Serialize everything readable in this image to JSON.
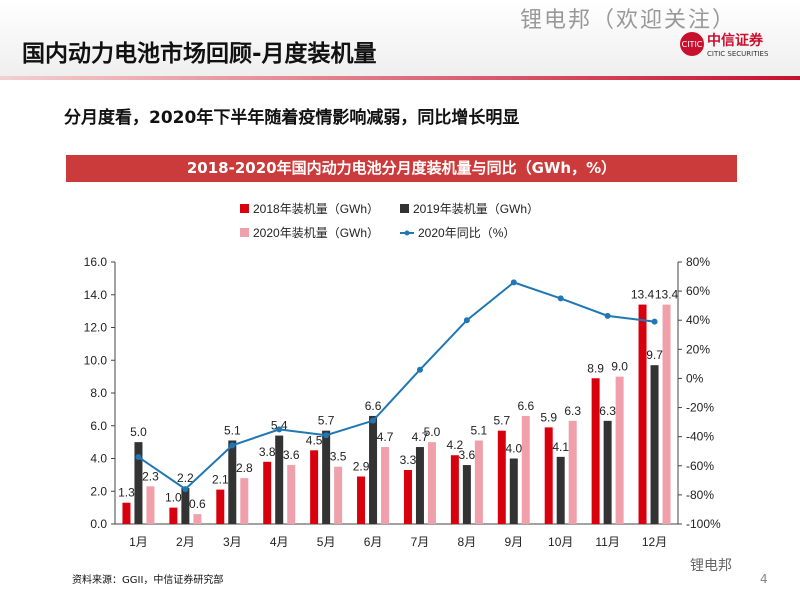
{
  "header": {
    "title": "国内动力电池市场回顾-月度装机量",
    "watermark": "锂电邦（欢迎关注）",
    "logo_cn": "中信证券",
    "logo_en": "CITIC SECURITIES",
    "logo_mark": "CITIC"
  },
  "subtitle": "分月度看，2020年下半年随着疫情影响减弱，同比增长明显",
  "chart_title": "2018-2020年国内动力电池分月度装机量与同比（GWh，%）",
  "source": "资料来源：GGII，中信证券研究部",
  "wechat": "锂电邦",
  "page_number": "4",
  "colors": {
    "s2018": "#d9000d",
    "s2019": "#333333",
    "s2020": "#f0a0aa",
    "yoy": "#1f77b4",
    "band": "#cc3b3b"
  },
  "chart_data": {
    "type": "bar",
    "categories": [
      "1月",
      "2月",
      "3月",
      "4月",
      "5月",
      "6月",
      "7月",
      "8月",
      "9月",
      "10月",
      "11月",
      "12月"
    ],
    "series": [
      {
        "name": "2018年装机量（GWh）",
        "values": [
          1.3,
          1.0,
          2.1,
          3.8,
          4.5,
          2.9,
          3.3,
          4.2,
          5.7,
          5.9,
          8.9,
          13.4
        ]
      },
      {
        "name": "2019年装机量（GWh）",
        "values": [
          5.0,
          2.2,
          5.1,
          5.4,
          5.7,
          6.6,
          4.7,
          3.6,
          4.0,
          4.1,
          6.3,
          9.7
        ]
      },
      {
        "name": "2020年装机量（GWh）",
        "values": [
          2.3,
          0.6,
          2.8,
          3.6,
          3.5,
          4.7,
          5.0,
          5.1,
          6.6,
          6.3,
          9.0,
          13.4
        ]
      },
      {
        "name": "2020年同比（%）",
        "type": "line",
        "axis": "right",
        "values": [
          -54,
          -76,
          -46,
          -35,
          -39,
          -29,
          6,
          40,
          66,
          55,
          43,
          39
        ]
      }
    ],
    "ylim": [
      0,
      16
    ],
    "yticks": [
      "0.0",
      "2.0",
      "4.0",
      "6.0",
      "8.0",
      "10.0",
      "12.0",
      "14.0",
      "16.0"
    ],
    "y2lim": [
      -100,
      80
    ],
    "y2ticks": [
      "-100%",
      "-80%",
      "-60%",
      "-40%",
      "-20%",
      "0%",
      "20%",
      "40%",
      "60%",
      "80%"
    ],
    "legend": "top"
  }
}
